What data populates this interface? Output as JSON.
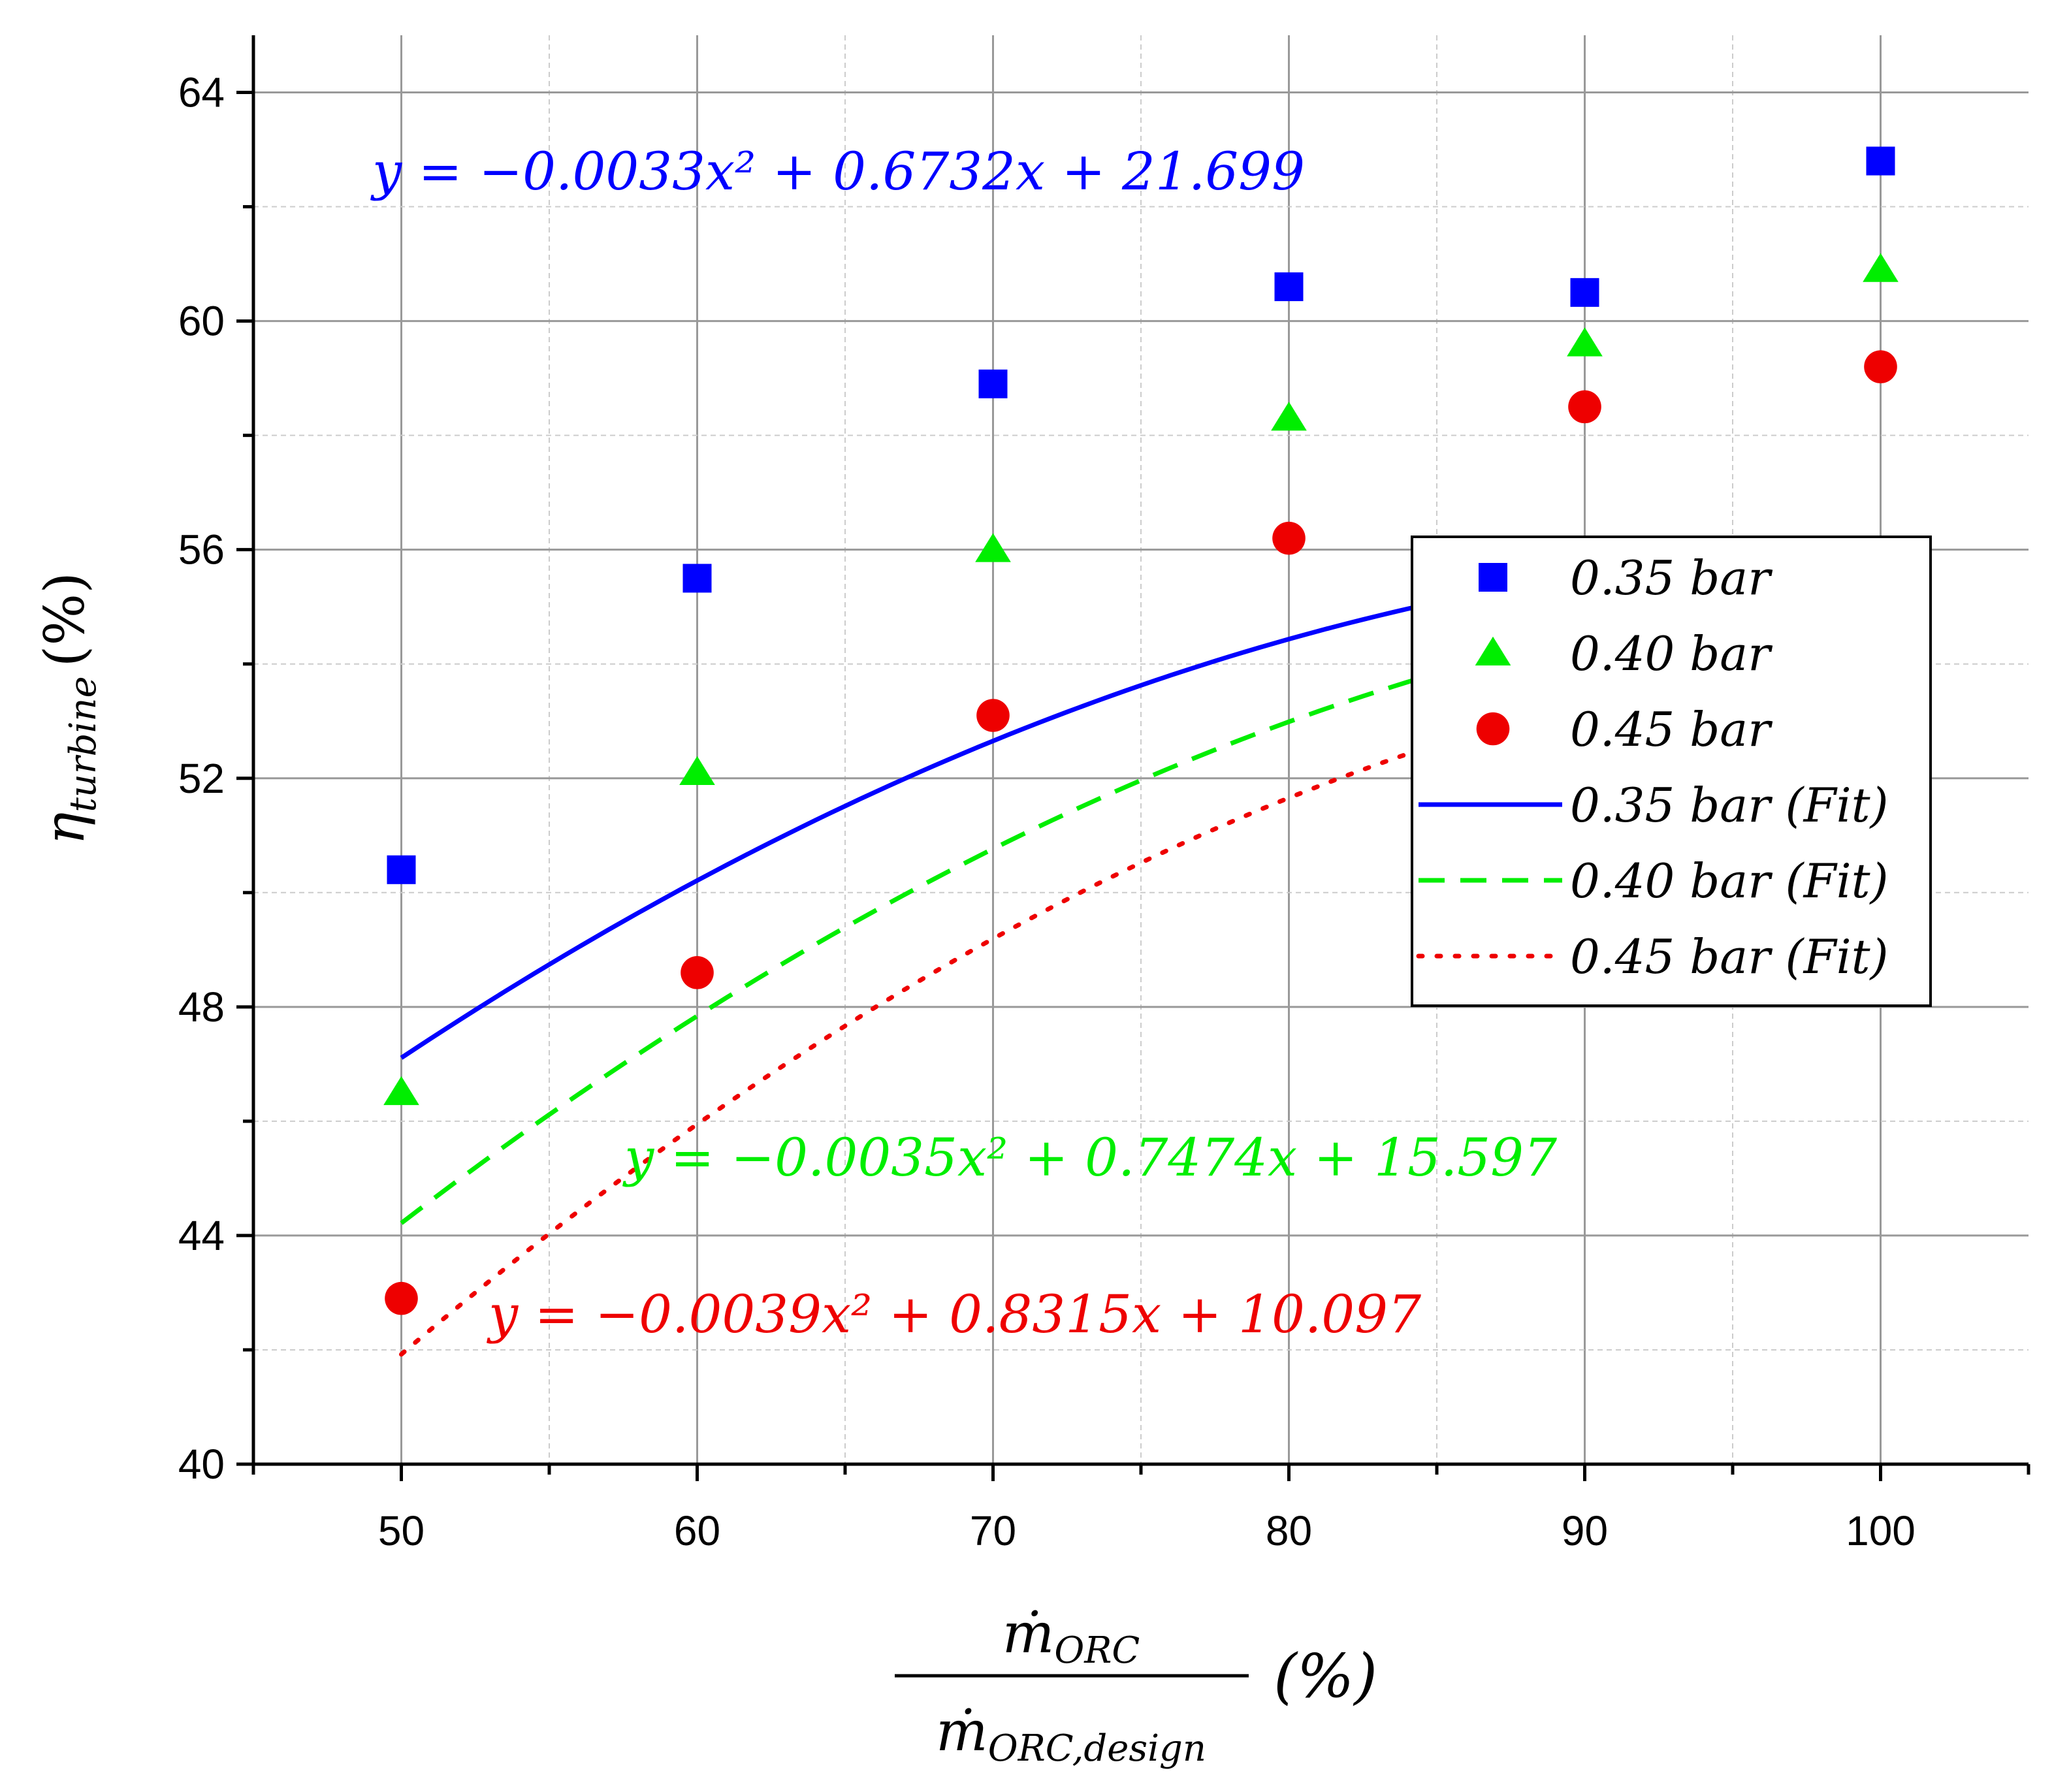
{
  "chart_data": {
    "type": "scatter",
    "xlim": [
      45,
      105
    ],
    "ylim": [
      40,
      65
    ],
    "x_ticks": [
      "50",
      "60",
      "70",
      "80",
      "90",
      "100"
    ],
    "y_ticks": [
      "40",
      "44",
      "48",
      "52",
      "56",
      "60",
      "64"
    ],
    "grid": true,
    "xlabel": {
      "numerator": "ṁ",
      "numerator_sub": "ORC",
      "denominator": "ṁ",
      "denominator_sub": "ORC,design",
      "unit": "(%)"
    },
    "ylabel": {
      "symbol": "η",
      "sub": "turbine",
      "unit": "(%)"
    },
    "legend_position": "center-right",
    "series": [
      {
        "name": "0.35 bar",
        "fit_name": "0.35 bar (Fit)",
        "color": "#0000ff",
        "marker": "square",
        "line_style": "solid",
        "x": [
          50,
          60,
          70,
          80,
          90,
          100
        ],
        "y": [
          50.4,
          55.5,
          58.9,
          60.6,
          60.5,
          62.8
        ],
        "fit": {
          "a": -0.0033,
          "b": 0.6732,
          "c": 21.699
        },
        "equation": "y = −0.0033x² + 0.6732x + 21.699"
      },
      {
        "name": "0.40 bar",
        "fit_name": "0.40 bar (Fit)",
        "color": "#00ee00",
        "marker": "triangle",
        "line_style": "dashed",
        "x": [
          50,
          60,
          70,
          80,
          90,
          100
        ],
        "y": [
          46.5,
          52.1,
          56.0,
          58.3,
          59.6,
          60.9
        ],
        "fit": {
          "a": -0.0035,
          "b": 0.7474,
          "c": 15.597
        },
        "equation": "y = −0.0035x² + 0.7474x + 15.597"
      },
      {
        "name": "0.45 bar",
        "fit_name": "0.45 bar (Fit)",
        "color": "#ee0000",
        "marker": "circle",
        "line_style": "dotted",
        "x": [
          50,
          60,
          70,
          80,
          90,
          100
        ],
        "y": [
          42.9,
          48.6,
          53.1,
          56.2,
          58.5,
          59.2
        ],
        "fit": {
          "a": -0.0039,
          "b": 0.8315,
          "c": 10.097
        },
        "equation": "y = −0.0039x² + 0.8315x + 10.097"
      }
    ]
  }
}
